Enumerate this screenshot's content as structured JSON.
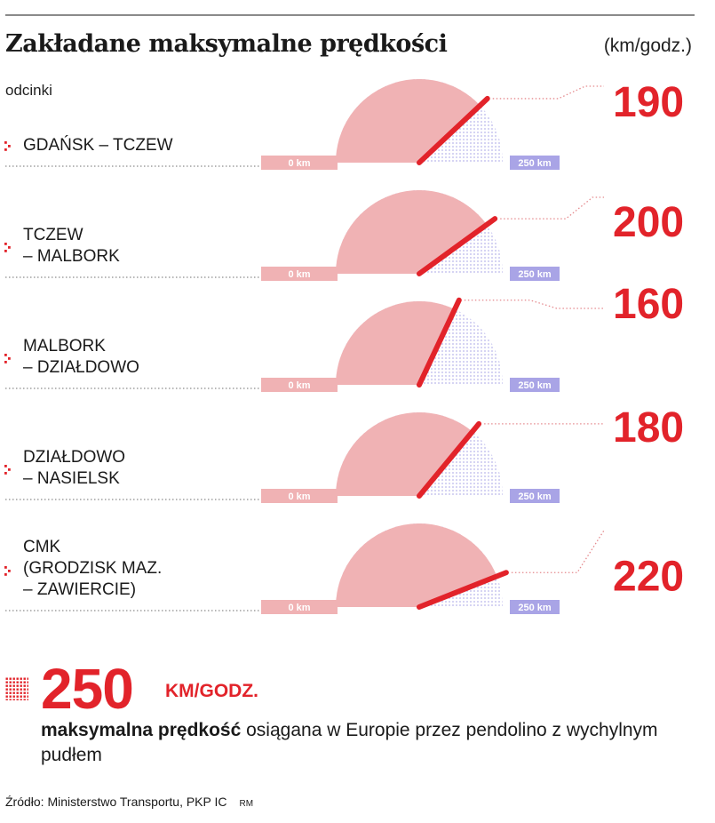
{
  "header": {
    "title": "Zakładane maksymalne prędkości",
    "unit": "(km/godz.)",
    "subtitle": "odcinki"
  },
  "chart_data": {
    "type": "gauge",
    "title": "Zakładane maksymalne prędkości",
    "unit": "(km/godz.)",
    "scale_min_label": "0 km",
    "scale_max_label": "250 km",
    "scale_min": 0,
    "scale_max": 250,
    "categories": [
      [
        "GDAŃSK – TCZEW"
      ],
      [
        "TCZEW",
        "– MALBORK"
      ],
      [
        "MALBORK",
        "– DZIAŁDOWO"
      ],
      [
        "DZIAŁDOWO",
        "– NASIELSK"
      ],
      [
        "CMK",
        "(GRODZISK MAZ.",
        "– ZAWIERCIE)"
      ]
    ],
    "values": [
      190,
      200,
      160,
      180,
      220
    ],
    "colors": {
      "filled": "#f0b2b4",
      "empty_dots": "#c8c8ec",
      "needle": "#e2232a",
      "accent": "#e2232a",
      "scale_max": "#a9a4e6",
      "scale_min": "#f0b2b4"
    }
  },
  "max_speed": {
    "value": "250",
    "unit": "KM/GODZ.",
    "desc_bold": "maksymalna prędkość",
    "desc_rest": " osiągana w Europie przez pendolino z wychylnym pudłem"
  },
  "footer": {
    "source": "Źródło: Ministerstwo Transportu, PKP IC",
    "author": "RM"
  }
}
